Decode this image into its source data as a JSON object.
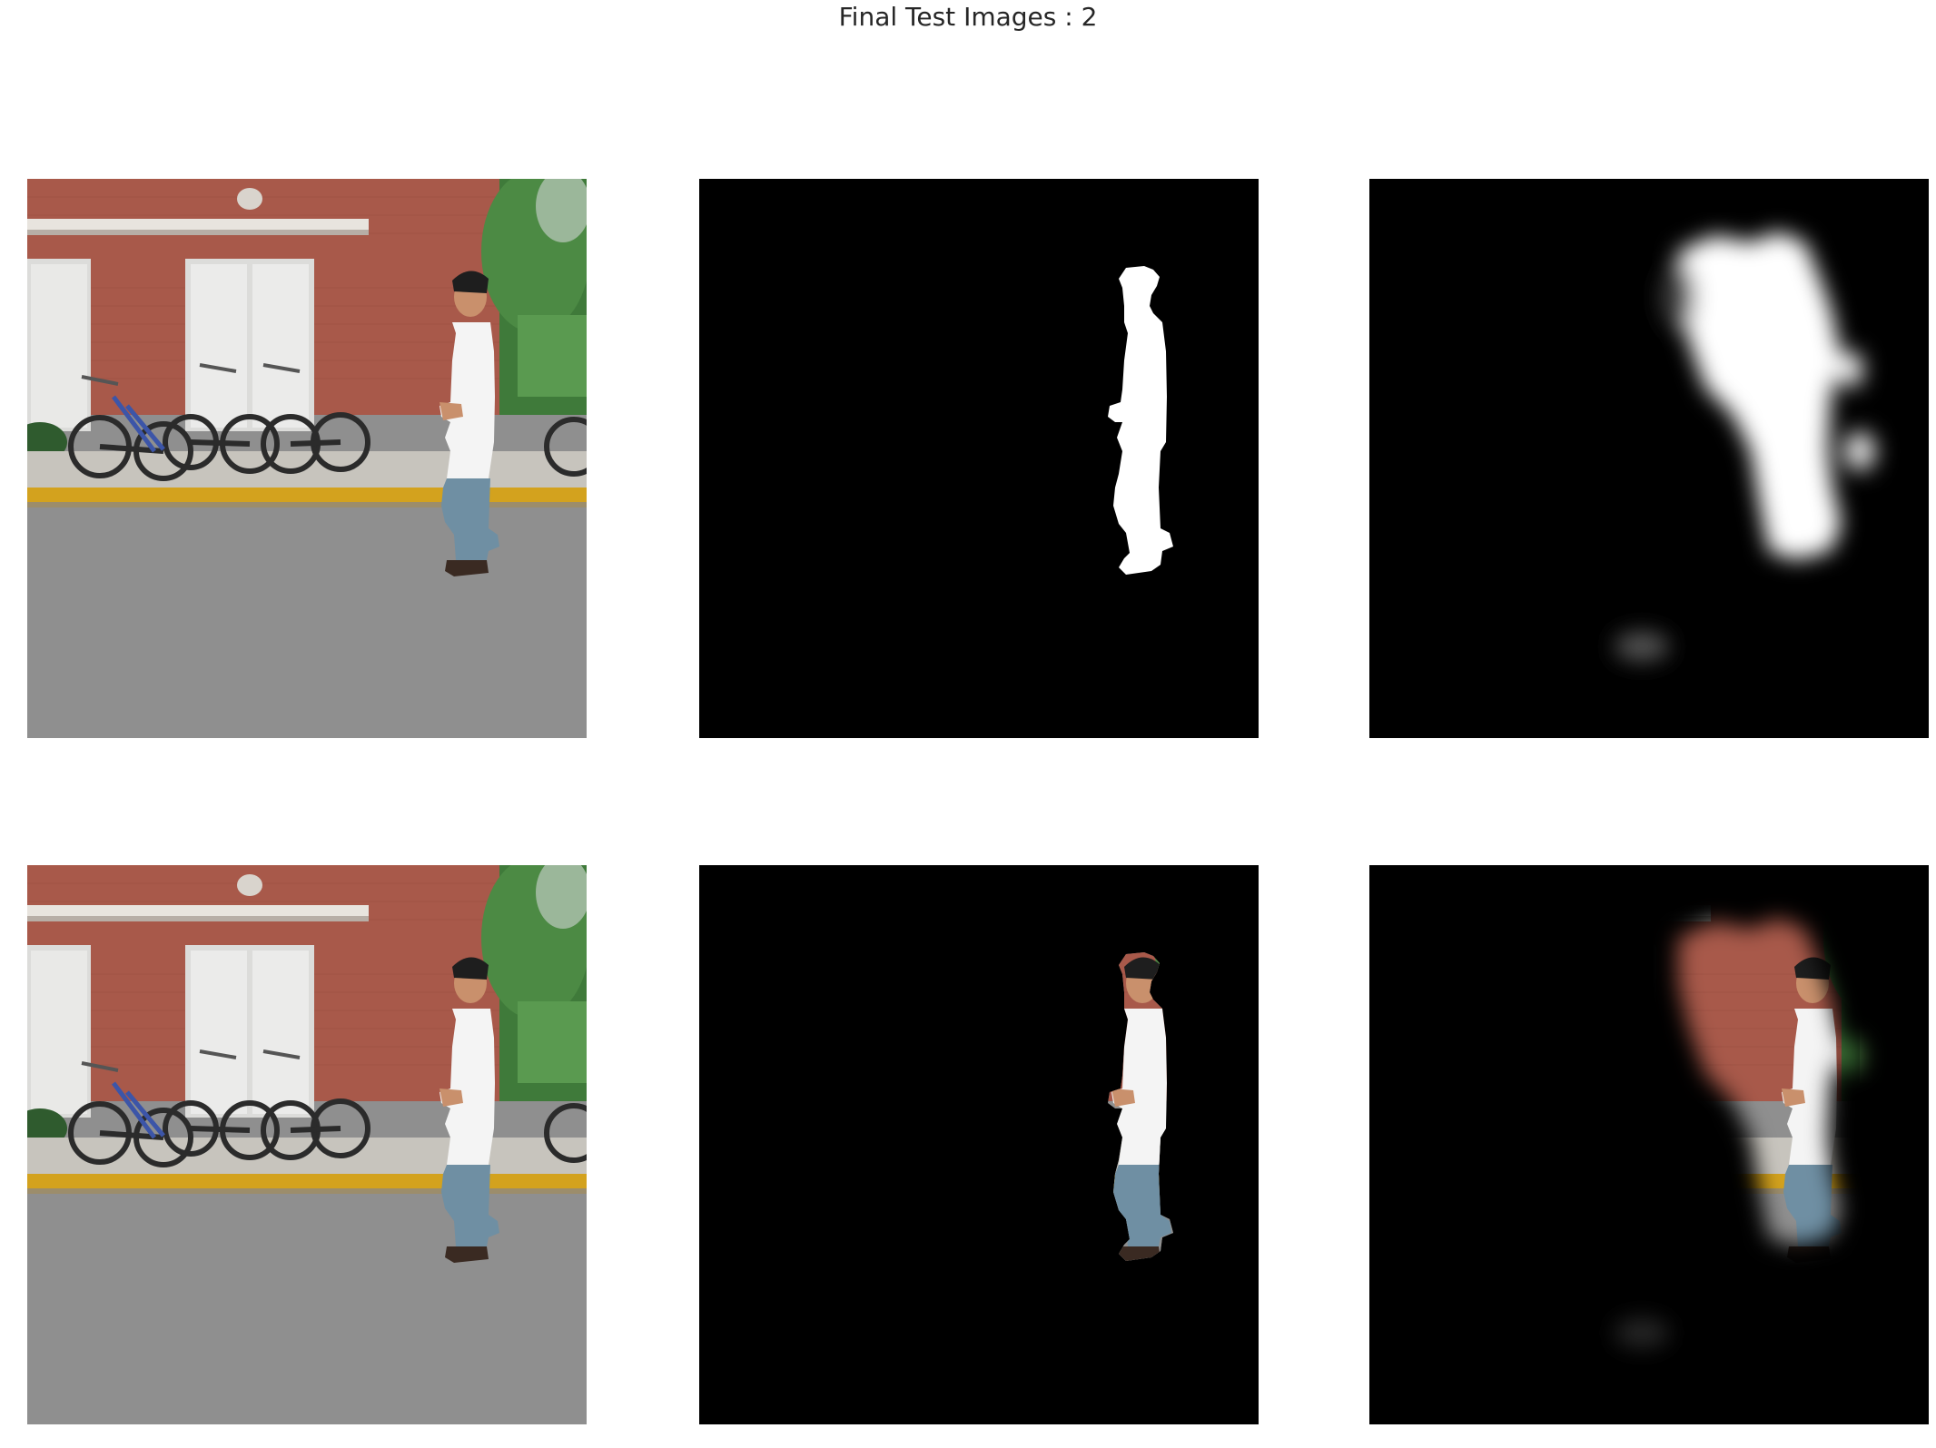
{
  "figure": {
    "title": "Final Test Images : 2"
  },
  "panels": [
    {
      "row": 1,
      "column": 1,
      "content": "photo"
    },
    {
      "row": 1,
      "column": 2,
      "content": "ground-truth-mask"
    },
    {
      "row": 1,
      "column": 3,
      "content": "predicted-mask"
    },
    {
      "row": 2,
      "column": 1,
      "content": "photo"
    },
    {
      "row": 2,
      "column": 2,
      "content": "ground-truth-cutout"
    },
    {
      "row": 2,
      "column": 3,
      "content": "predicted-cutout"
    }
  ],
  "colors": {
    "background": "#ffffff",
    "panel_background": "#000000",
    "brick_wall": "#a8594a",
    "road": "#8f8f8f",
    "curb": "#d3a21e",
    "foliage": "#3f7a3a",
    "shirt": "#f4f4f4",
    "jeans": "#6f8fa3",
    "hair": "#1e1e1e",
    "skin": "#c9906c",
    "mask": "#ffffff"
  }
}
